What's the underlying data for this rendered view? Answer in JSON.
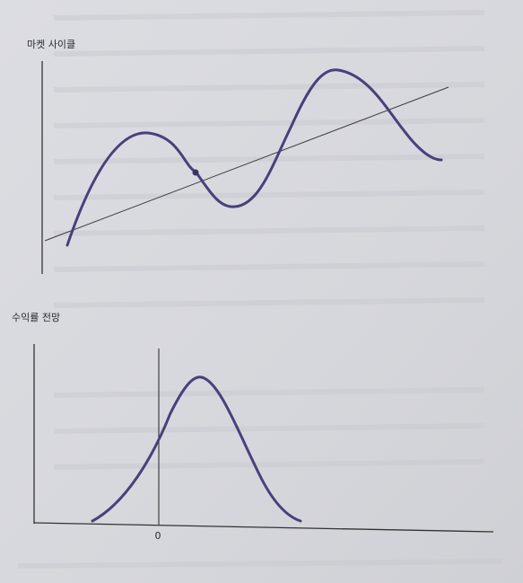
{
  "diagrams": [
    {
      "title": "마켓 사이클"
    },
    {
      "title": "수익률 전망",
      "zero_label": "0"
    }
  ]
}
